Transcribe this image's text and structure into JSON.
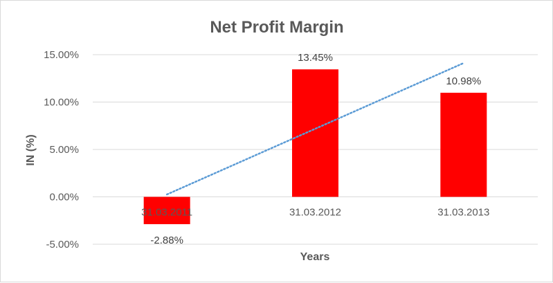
{
  "chart_data": {
    "type": "bar",
    "title": "Net Profit Margin",
    "xlabel": "Years",
    "ylabel": "IN (%)",
    "categories": [
      "31.03.2011",
      "31.03.2012",
      "31.03.2013"
    ],
    "series": [
      {
        "values": [
          -2.88,
          13.45,
          10.98
        ],
        "data_labels": [
          "-2.88%",
          "13.45%",
          "10.98%"
        ],
        "color": "#ff0000"
      }
    ],
    "ylim": [
      -5,
      15
    ],
    "yticks": [
      -5,
      0,
      5,
      10,
      15
    ],
    "ytick_labels": [
      "-5.00%",
      "0.00%",
      "5.00%",
      "10.00%",
      "15.00%"
    ],
    "grid": true,
    "legend": "none",
    "trendline": {
      "type": "linear",
      "style": "dotted",
      "color": "#5b9bd5"
    },
    "colors": {
      "gridline": "#d9d9d9",
      "text": "#595959"
    }
  }
}
